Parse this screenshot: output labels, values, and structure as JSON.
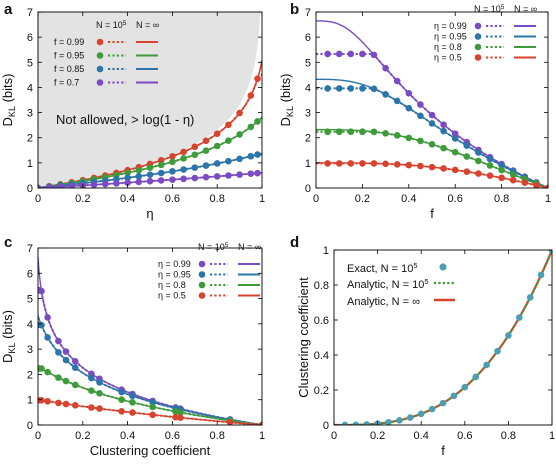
{
  "colors": {
    "red": "#d8432f",
    "green": "#3e9b3a",
    "blue": "#2b75a8",
    "purple": "#7c4bc4",
    "teal": "#4a9fb0",
    "forbidden": "#e3e3e3"
  },
  "panels": {
    "a": {
      "letter": "a",
      "xlabel": "η",
      "ylabel_main": "D",
      "ylabel_sub": "KL",
      "ylabel_unit": " (bits)",
      "legend_header_n": "N = 10",
      "legend_header_n_exp": "5",
      "legend_header_inf": "N = ∞",
      "forbidden_text": "Not allowed,  > log(1 - η)"
    },
    "b": {
      "letter": "b",
      "xlabel": "f",
      "ylabel_main": "D",
      "ylabel_sub": "KL",
      "ylabel_unit": " (bits)",
      "legend_header_n": "N = 10",
      "legend_header_n_exp": "5",
      "legend_header_inf": "N = ∞"
    },
    "c": {
      "letter": "c",
      "xlabel": "Clustering coefficient",
      "ylabel_main": "D",
      "ylabel_sub": "KL",
      "ylabel_unit": " (bits)",
      "legend_header_n": "N = 10",
      "legend_header_n_exp": "5",
      "legend_header_inf": "N = ∞"
    },
    "d": {
      "letter": "d",
      "xlabel": "f",
      "ylabel": "Clustering coefficient",
      "legend": {
        "exact": "Exact, N = 10",
        "exact_exp": "5",
        "analytic_n": "Analytic, N = 10",
        "analytic_n_exp": "5",
        "analytic_inf": "Analytic, N = ∞"
      }
    }
  },
  "chart_data": [
    {
      "panel": "a",
      "type": "line",
      "xlim": [
        0,
        1
      ],
      "ylim": [
        0,
        7
      ],
      "xticks": [
        "0",
        "0.2",
        "0.4",
        "0.6",
        "0.8",
        "1"
      ],
      "yticks": [
        "0",
        "1",
        "2",
        "3",
        "4",
        "5",
        "6",
        "7"
      ],
      "legend_position": "top-left",
      "series": [
        {
          "name": "f = 0.99",
          "color": "red",
          "f": 0.99
        },
        {
          "name": "f = 0.95",
          "color": "green",
          "f": 0.95
        },
        {
          "name": "f = 0.85",
          "color": "blue",
          "f": 0.85
        },
        {
          "name": "f = 0.7",
          "color": "purple",
          "f": 0.7
        }
      ],
      "markers_x": [
        0,
        0.05,
        0.1,
        0.15,
        0.2,
        0.25,
        0.3,
        0.35,
        0.4,
        0.45,
        0.5,
        0.55,
        0.6,
        0.65,
        0.7,
        0.75,
        0.8,
        0.85,
        0.9,
        0.95,
        0.98
      ]
    },
    {
      "panel": "b",
      "type": "line",
      "xlim": [
        0,
        1
      ],
      "ylim": [
        0,
        7
      ],
      "xticks": [
        "0",
        "0.2",
        "0.4",
        "0.6",
        "0.8",
        "1"
      ],
      "yticks": [
        "0",
        "1",
        "2",
        "3",
        "4",
        "5",
        "6",
        "7"
      ],
      "legend_position": "top-right",
      "series": [
        {
          "name": "η = 0.99",
          "color": "purple",
          "eta": 0.99
        },
        {
          "name": "η = 0.95",
          "color": "blue",
          "eta": 0.95
        },
        {
          "name": "η = 0.8",
          "color": "green",
          "eta": 0.8
        },
        {
          "name": "η = 0.5",
          "color": "red",
          "eta": 0.5
        }
      ],
      "markers_x": [
        0.05,
        0.1,
        0.15,
        0.2,
        0.25,
        0.3,
        0.35,
        0.4,
        0.45,
        0.5,
        0.55,
        0.6,
        0.65,
        0.7,
        0.75,
        0.8,
        0.85,
        0.9,
        0.95,
        1.0
      ]
    },
    {
      "panel": "c",
      "type": "line",
      "xlim": [
        0,
        1
      ],
      "ylim": [
        0,
        7
      ],
      "xticks": [
        "0",
        "0.2",
        "0.4",
        "0.6",
        "0.8",
        "1"
      ],
      "yticks": [
        "0",
        "1",
        "2",
        "3",
        "4",
        "5",
        "6",
        "7"
      ],
      "legend_position": "top-right",
      "series": [
        {
          "name": "η = 0.99",
          "color": "purple",
          "eta": 0.99
        },
        {
          "name": "η = 0.95",
          "color": "blue",
          "eta": 0.95
        },
        {
          "name": "η = 0.8",
          "color": "green",
          "eta": 0.8
        },
        {
          "name": "η = 0.5",
          "color": "red",
          "eta": 0.5
        }
      ],
      "markers_f": [
        0.05,
        0.15,
        0.25,
        0.35,
        0.45,
        0.55,
        0.65,
        0.75,
        0.85,
        0.95,
        1.0
      ]
    },
    {
      "panel": "d",
      "type": "line",
      "xlim": [
        0,
        1
      ],
      "ylim": [
        0,
        1
      ],
      "xticks": [
        "0",
        "0.2",
        "0.4",
        "0.6",
        "0.8",
        "1"
      ],
      "yticks": [
        "0",
        "0.2",
        "0.4",
        "0.6",
        "0.8",
        "1"
      ],
      "legend_position": "top-left",
      "markers_x": [
        0.05,
        0.1,
        0.15,
        0.2,
        0.25,
        0.3,
        0.35,
        0.4,
        0.45,
        0.5,
        0.55,
        0.6,
        0.65,
        0.7,
        0.75,
        0.8,
        0.85,
        0.9,
        0.95,
        1.0
      ]
    }
  ]
}
